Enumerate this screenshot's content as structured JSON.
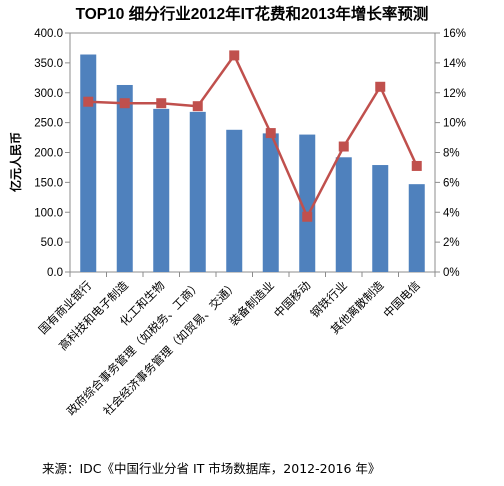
{
  "chart_data": {
    "type": "bar+line",
    "title": "TOP10 细分行业2012年IT花费和2013年增长率预测",
    "ylabel": "亿元人民币",
    "y2label": "",
    "ylim": [
      0,
      400
    ],
    "y2lim": [
      0,
      0.16
    ],
    "yticks": [
      "0.0",
      "50.0",
      "100.0",
      "150.0",
      "200.0",
      "250.0",
      "300.0",
      "350.0",
      "400.0"
    ],
    "y2ticks": [
      "0%",
      "2%",
      "4%",
      "6%",
      "8%",
      "10%",
      "12%",
      "14%",
      "16%"
    ],
    "categories": [
      "国有商业银行",
      "高科技和电子制造",
      "化工和生物",
      "政府综合事务管理（如税务、工商）",
      "社会经济事务管理（如贸易、交通）",
      "装备制造业",
      "中国移动",
      "钢铁行业",
      "其他离散制造",
      "中国电信"
    ],
    "series": [
      {
        "type": "bar",
        "axis": "left",
        "color": "#4f81bd",
        "values": [
          364,
          313,
          273,
          268,
          238,
          232,
          230,
          192,
          179,
          147
        ]
      },
      {
        "type": "line",
        "axis": "right",
        "color": "#c0504d",
        "values": [
          0.114,
          0.113,
          0.113,
          0.111,
          0.145,
          0.093,
          0.037,
          0.084,
          0.124,
          0.071
        ]
      }
    ],
    "grid": false,
    "legend": "none"
  },
  "source": "来源：IDC《中国行业分省 IT 市场数据库，2012-2016 年》"
}
